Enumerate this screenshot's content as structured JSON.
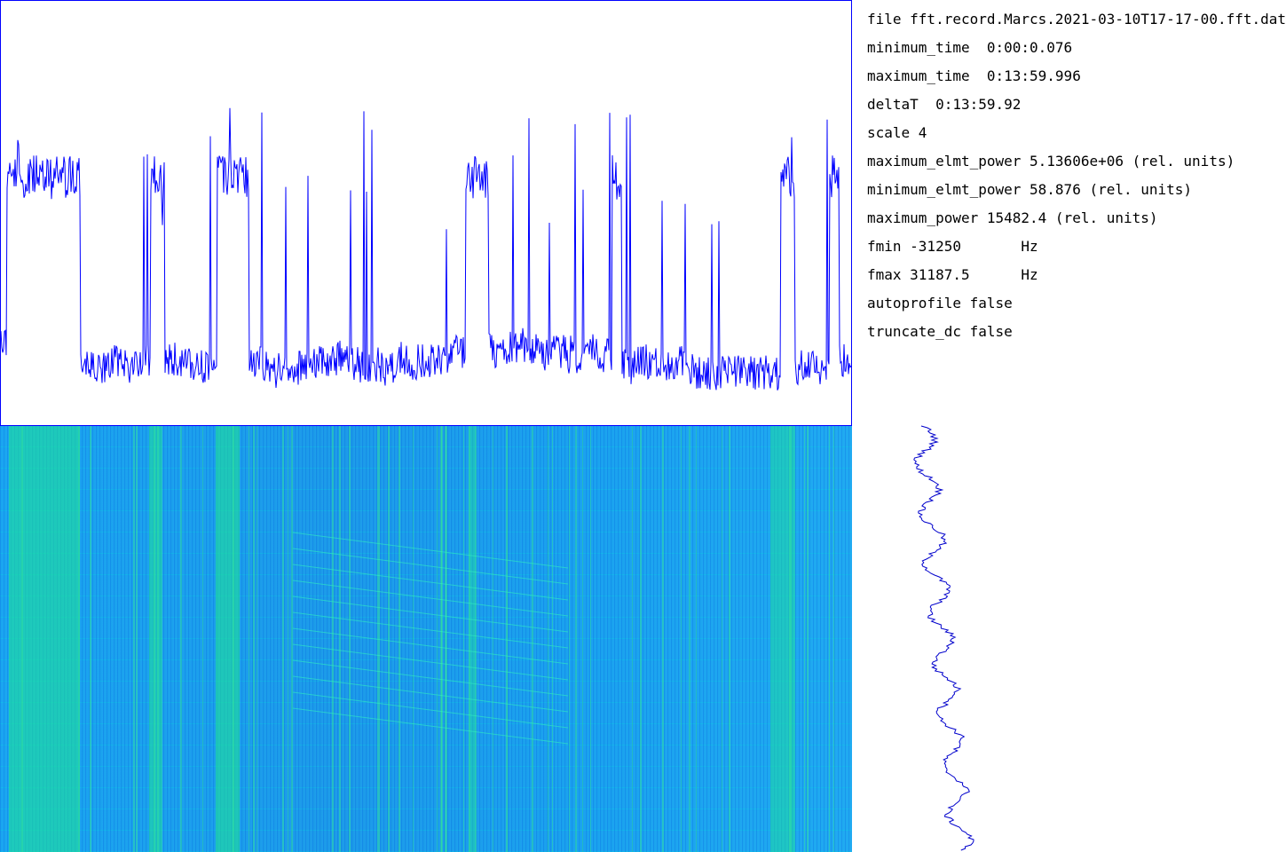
{
  "info": {
    "lines": [
      "file fft.record.Marcs.2021-03-10T17-17-00.fft.dat",
      "minimum_time  0:00:0.076",
      "maximum_time  0:13:59.996",
      "deltaT  0:13:59.92",
      "scale 4",
      "maximum_elmt_power 5.13606e+06 (rel. units)",
      "minimum_elmt_power 58.876 (rel. units)",
      "maximum_power 15482.4 (rel. units)",
      "fmin -31250       Hz",
      "fmax 31187.5      Hz",
      "autoprofile false",
      "truncate_dc false"
    ]
  }
}
